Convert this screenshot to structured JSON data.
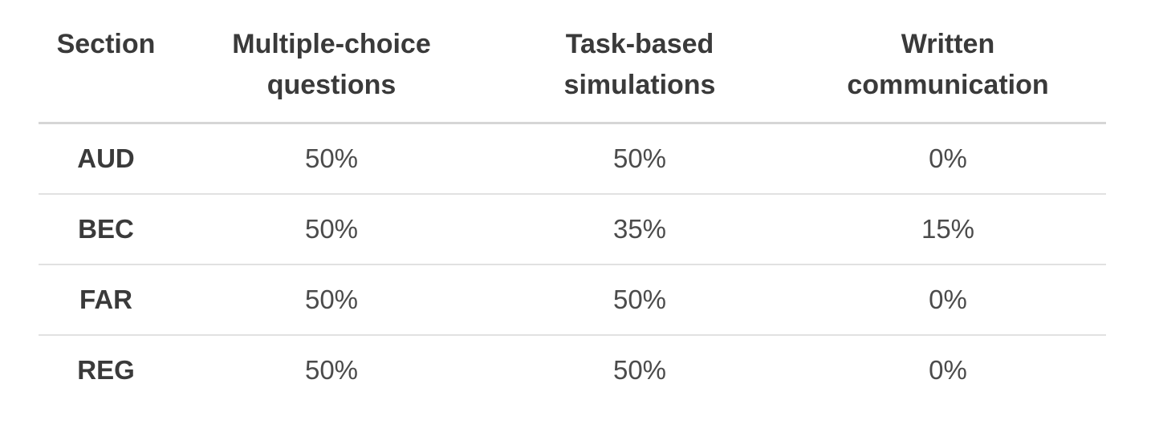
{
  "table": {
    "headers": {
      "section": "Section",
      "mcq": "Multiple-choice questions",
      "tbs": "Task-based simulations",
      "wc": "Written communication"
    },
    "rows": [
      {
        "section": "AUD",
        "mcq": "50%",
        "tbs": "50%",
        "wc": "0%"
      },
      {
        "section": "BEC",
        "mcq": "50%",
        "tbs": "35%",
        "wc": "15%"
      },
      {
        "section": "FAR",
        "mcq": "50%",
        "tbs": "50%",
        "wc": "0%"
      },
      {
        "section": "REG",
        "mcq": "50%",
        "tbs": "50%",
        "wc": "0%"
      }
    ],
    "colors": {
      "header_text": "#3a3a3a",
      "body_text": "#4b4b4b",
      "header_rule": "#d6d6d6",
      "row_rule": "#e1e1e1",
      "background": "#ffffff"
    }
  }
}
